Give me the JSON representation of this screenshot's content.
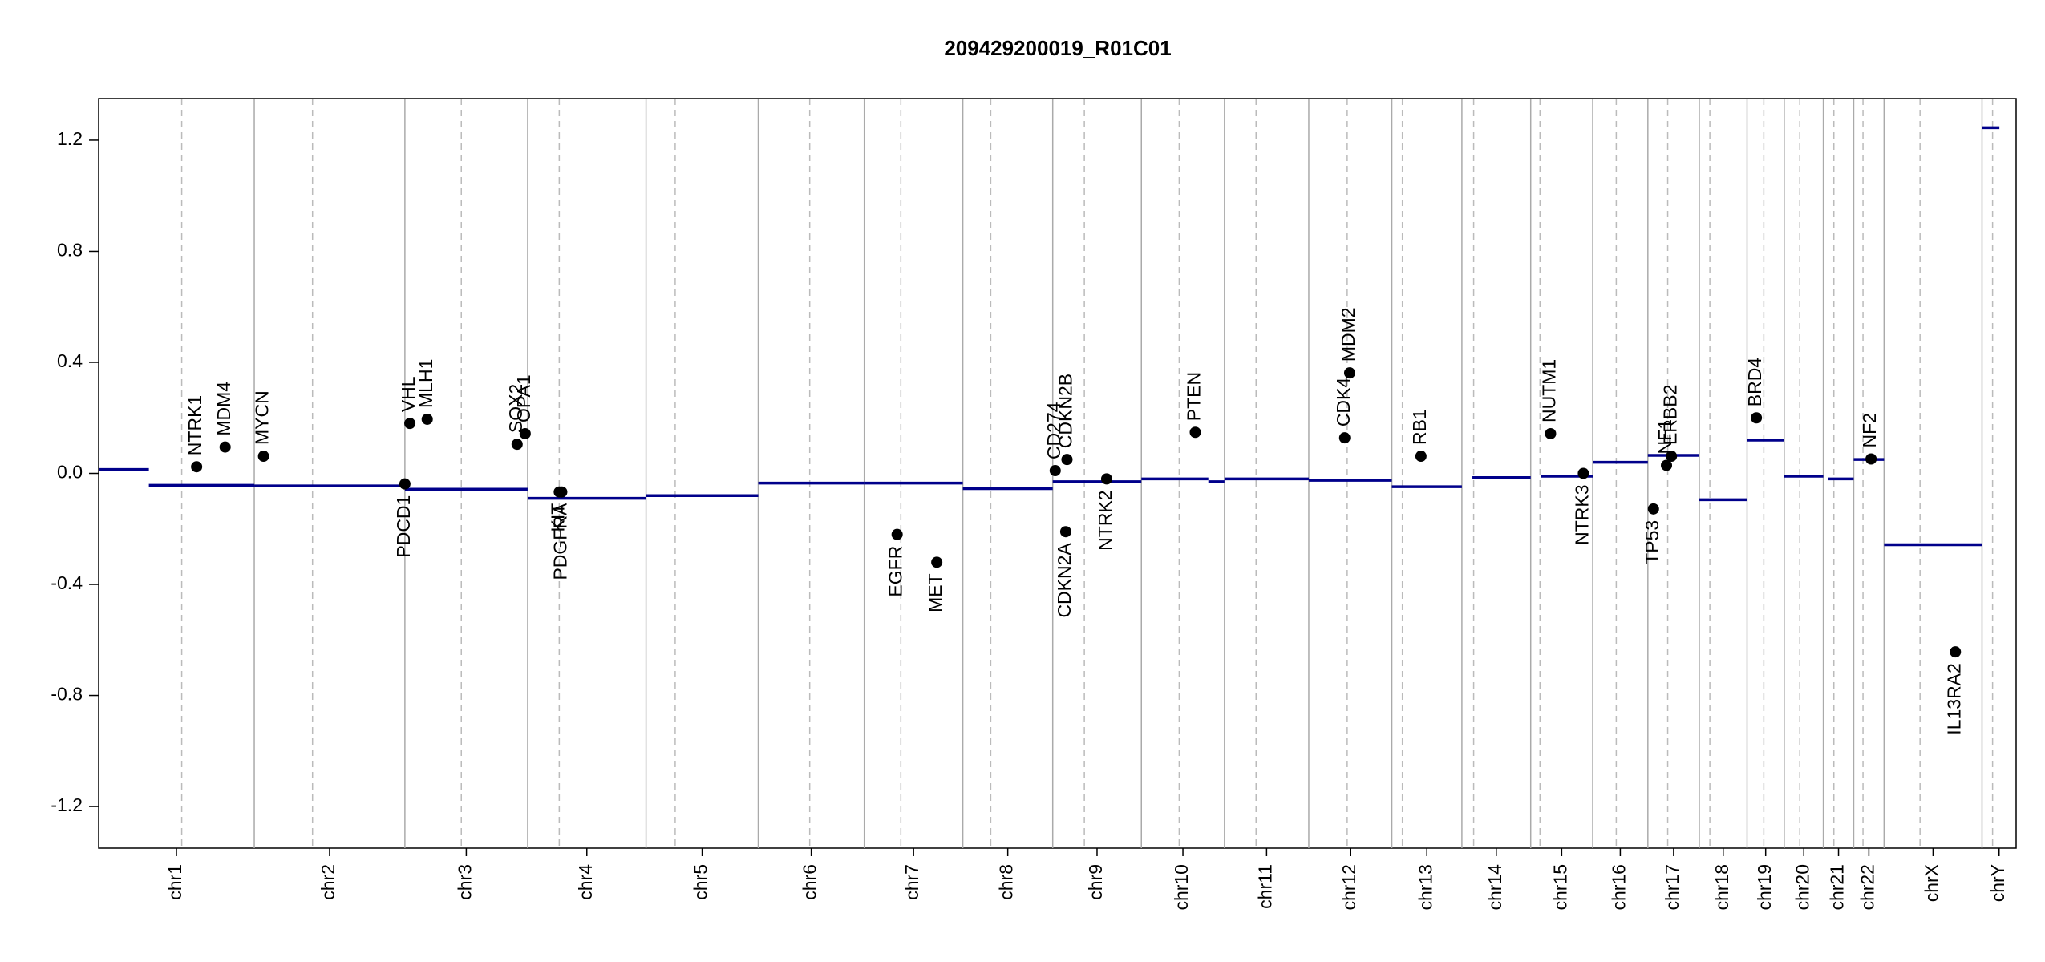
{
  "chart_data": {
    "type": "genome",
    "title": "209429200019_R01C01",
    "ylim": [
      -1.35,
      1.35
    ],
    "yticks": [
      -1.2,
      -0.8,
      -0.4,
      {
        "value": 0,
        "label": "0.0"
      },
      0.4,
      0.8,
      1.2
    ],
    "xlim": [
      0,
      3093
    ],
    "categories": [
      "chr1",
      "chr2",
      "chr3",
      "chr4",
      "chr5",
      "chr6",
      "chr7",
      "chr8",
      "chr9",
      "chr10",
      "chr11",
      "chr12",
      "chr13",
      "chr14",
      "chr15",
      "chr16",
      "chr17",
      "chr18",
      "chr19",
      "chr20",
      "chr21",
      "chr22",
      "chrX",
      "chrY"
    ],
    "chrom_bounds": [
      0,
      251,
      494,
      692,
      883,
      1064,
      1235,
      1394,
      1539,
      1682,
      1816,
      1952,
      2086,
      2199,
      2310,
      2410,
      2499,
      2582,
      2659,
      2719,
      2782,
      2831,
      2880,
      3038,
      3093
    ],
    "centromeres": [
      134,
      345,
      585,
      743,
      930,
      1147,
      1294,
      1439,
      1590,
      1743,
      1867,
      2014,
      2103,
      2218,
      2325,
      2448,
      2531,
      2599,
      2686,
      2744,
      2799,
      2846,
      2938,
      3055
    ],
    "segment_color": "#00008b",
    "segments": [
      {
        "start": 0,
        "end": 81,
        "value": 0.014
      },
      {
        "start": 81,
        "end": 251,
        "value": -0.043
      },
      {
        "start": 251,
        "end": 494,
        "value": -0.045
      },
      {
        "start": 494,
        "end": 692,
        "value": -0.057
      },
      {
        "start": 692,
        "end": 883,
        "value": -0.09
      },
      {
        "start": 883,
        "end": 1064,
        "value": -0.08
      },
      {
        "start": 1064,
        "end": 1235,
        "value": -0.035
      },
      {
        "start": 1235,
        "end": 1394,
        "value": -0.035
      },
      {
        "start": 1394,
        "end": 1539,
        "value": -0.055
      },
      {
        "start": 1539,
        "end": 1682,
        "value": -0.03
      },
      {
        "start": 1682,
        "end": 1790,
        "value": -0.02
      },
      {
        "start": 1790,
        "end": 1816,
        "value": -0.03
      },
      {
        "start": 1816,
        "end": 1952,
        "value": -0.02
      },
      {
        "start": 1952,
        "end": 2086,
        "value": -0.025
      },
      {
        "start": 2086,
        "end": 2199,
        "value": -0.048
      },
      {
        "start": 2216,
        "end": 2310,
        "value": -0.015
      },
      {
        "start": 2327,
        "end": 2410,
        "value": -0.01
      },
      {
        "start": 2410,
        "end": 2499,
        "value": 0.04
      },
      {
        "start": 2499,
        "end": 2582,
        "value": 0.065
      },
      {
        "start": 2582,
        "end": 2659,
        "value": -0.095
      },
      {
        "start": 2659,
        "end": 2719,
        "value": 0.12
      },
      {
        "start": 2719,
        "end": 2782,
        "value": -0.01
      },
      {
        "start": 2789,
        "end": 2831,
        "value": -0.02
      },
      {
        "start": 2831,
        "end": 2880,
        "value": 0.05
      },
      {
        "start": 2880,
        "end": 3038,
        "value": -0.257
      },
      {
        "start": 3038,
        "end": 3066,
        "value": 1.245
      }
    ],
    "genes": [
      {
        "name": "NTRK1",
        "x": 158,
        "value": 0.024,
        "label_pos": "above"
      },
      {
        "name": "MDM4",
        "x": 204,
        "value": 0.095,
        "label_pos": "above"
      },
      {
        "name": "MYCN",
        "x": 266,
        "value": 0.062,
        "label_pos": "above"
      },
      {
        "name": "PDCD1",
        "x": 494,
        "value": -0.038,
        "label_pos": "below"
      },
      {
        "name": "VHL",
        "x": 502,
        "value": 0.18,
        "label_pos": "above"
      },
      {
        "name": "MLH1",
        "x": 530,
        "value": 0.195,
        "label_pos": "above"
      },
      {
        "name": "SOX2",
        "x": 675,
        "value": 0.105,
        "label_pos": "above"
      },
      {
        "name": "OPA1",
        "x": 688,
        "value": 0.143,
        "label_pos": "above"
      },
      {
        "name": "KIT",
        "x": 743,
        "value": -0.067,
        "label_pos": "below"
      },
      {
        "name": "PDGFRA",
        "x": 747,
        "value": -0.067,
        "label_pos": "below"
      },
      {
        "name": "EGFR",
        "x": 1288,
        "value": -0.22,
        "label_pos": "below"
      },
      {
        "name": "MET",
        "x": 1352,
        "value": -0.32,
        "label_pos": "below"
      },
      {
        "name": "CD274",
        "x": 1543,
        "value": 0.01,
        "label_pos": "above"
      },
      {
        "name": "CDKN2B",
        "x": 1562,
        "value": 0.05,
        "label_pos": "above"
      },
      {
        "name": "CDKN2A",
        "x": 1560,
        "value": -0.21,
        "label_pos": "below"
      },
      {
        "name": "NTRK2",
        "x": 1626,
        "value": -0.02,
        "label_pos": "below"
      },
      {
        "name": "PTEN",
        "x": 1769,
        "value": 0.148,
        "label_pos": "above"
      },
      {
        "name": "CDK4",
        "x": 2010,
        "value": 0.128,
        "label_pos": "above"
      },
      {
        "name": "MDM2",
        "x": 2018,
        "value": 0.362,
        "label_pos": "above"
      },
      {
        "name": "RB1",
        "x": 2133,
        "value": 0.062,
        "label_pos": "above"
      },
      {
        "name": "NUTM1",
        "x": 2342,
        "value": 0.143,
        "label_pos": "above"
      },
      {
        "name": "NTRK3",
        "x": 2395,
        "value": 0.0,
        "label_pos": "below"
      },
      {
        "name": "TP53",
        "x": 2508,
        "value": -0.128,
        "label_pos": "below"
      },
      {
        "name": "NF1",
        "x": 2529,
        "value": 0.029,
        "label_pos": "above"
      },
      {
        "name": "ERBB2",
        "x": 2537,
        "value": 0.062,
        "label_pos": "above"
      },
      {
        "name": "BRD4",
        "x": 2674,
        "value": 0.2,
        "label_pos": "above"
      },
      {
        "name": "NF2",
        "x": 2859,
        "value": 0.052,
        "label_pos": "above"
      },
      {
        "name": "IL13RA2",
        "x": 2995,
        "value": -0.643,
        "label_pos": "below"
      }
    ]
  }
}
